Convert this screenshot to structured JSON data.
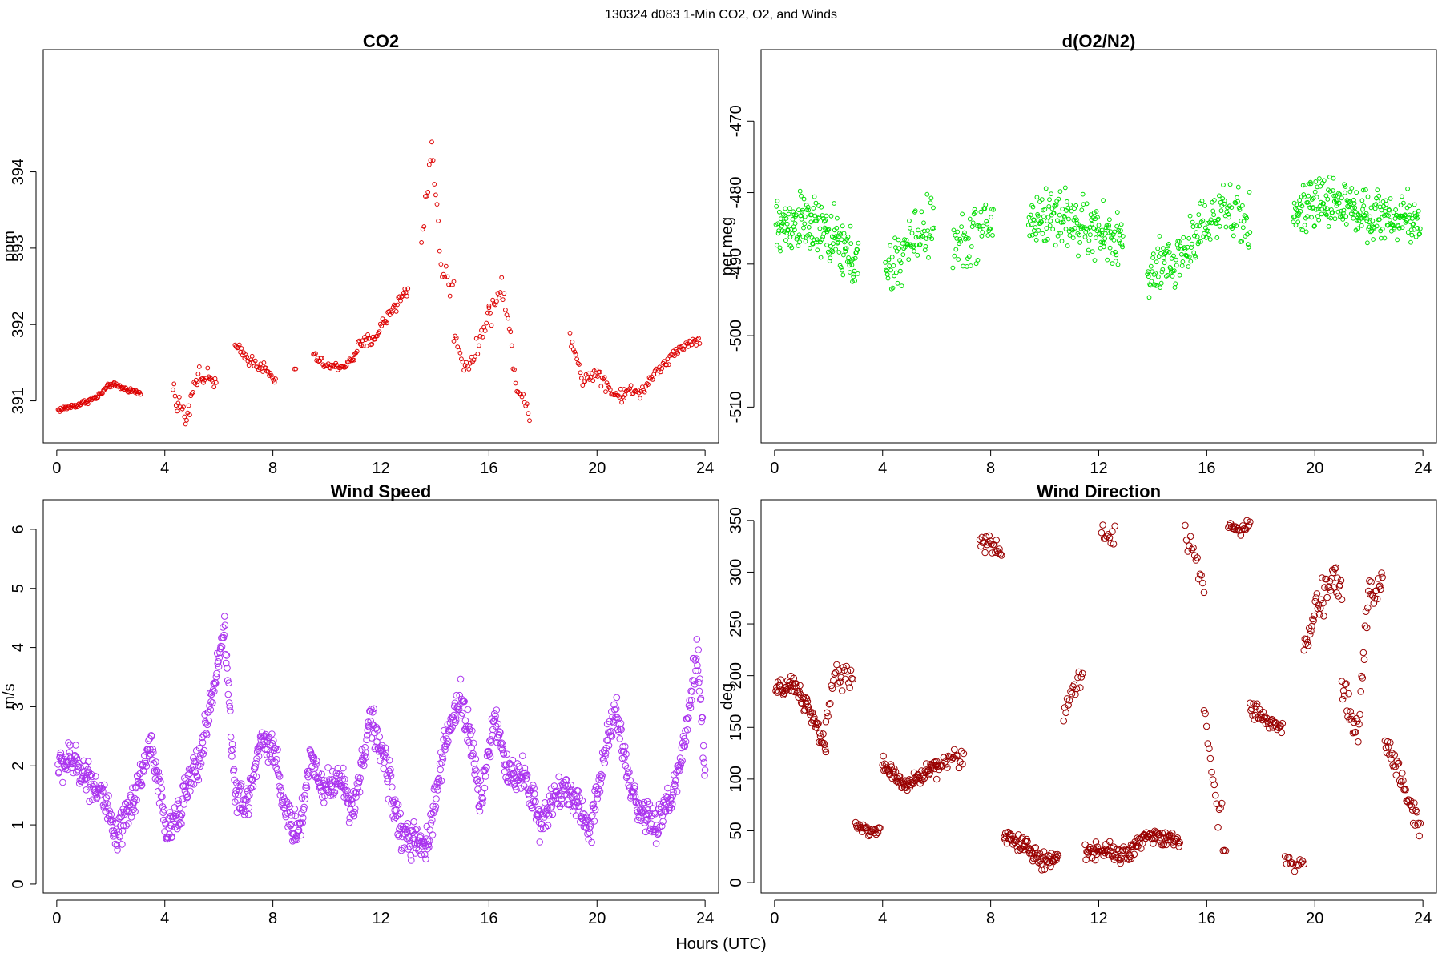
{
  "figure": {
    "title": "130324   d083   1-Min CO2, O2, and Winds",
    "xlabel": "Hours (UTC)"
  },
  "chart_data": [
    {
      "id": "co2",
      "type": "scatter",
      "title": "CO2",
      "xlabel": "",
      "ylabel": "ppm",
      "xlim": [
        -0.5,
        24.5
      ],
      "ylim": [
        390.45,
        395.6
      ],
      "xticks": [
        0,
        4,
        8,
        12,
        16,
        20,
        24
      ],
      "yticks": [
        391,
        392,
        393,
        394
      ],
      "color": "#dd0000",
      "marker_radius": 2.4,
      "segments": [
        {
          "x0": 0.05,
          "x1": 3.1,
          "knots": [
            [
              0.05,
              390.88
            ],
            [
              0.8,
              390.95
            ],
            [
              1.5,
              391.05
            ],
            [
              2.0,
              391.22
            ],
            [
              2.6,
              391.15
            ],
            [
              3.1,
              391.1
            ]
          ],
          "noise": 0.05,
          "density": 30
        },
        {
          "x0": 4.3,
          "x1": 5.9,
          "knots": [
            [
              4.3,
              391.15
            ],
            [
              4.8,
              390.75
            ],
            [
              5.1,
              391.3
            ],
            [
              5.5,
              391.3
            ],
            [
              5.9,
              391.25
            ]
          ],
          "noise": 0.18,
          "density": 26
        },
        {
          "x0": 6.6,
          "x1": 8.1,
          "knots": [
            [
              6.6,
              391.7
            ],
            [
              7.1,
              391.55
            ],
            [
              7.6,
              391.45
            ],
            [
              8.1,
              391.25
            ]
          ],
          "noise": 0.12,
          "density": 26
        },
        {
          "x0": 8.8,
          "x1": 8.85,
          "knots": [
            [
              8.8,
              391.42
            ],
            [
              8.85,
              391.42
            ]
          ],
          "noise": 0.01,
          "density": 10
        },
        {
          "x0": 9.5,
          "x1": 11.0,
          "knots": [
            [
              9.5,
              391.6
            ],
            [
              10.0,
              391.45
            ],
            [
              10.6,
              391.45
            ],
            [
              11.0,
              391.55
            ]
          ],
          "noise": 0.08,
          "density": 26
        },
        {
          "x0": 11.0,
          "x1": 13.0,
          "knots": [
            [
              11.0,
              391.65
            ],
            [
              11.8,
              391.85
            ],
            [
              12.4,
              392.2
            ],
            [
              13.0,
              392.45
            ]
          ],
          "noise": 0.15,
          "density": 26
        },
        {
          "x0": 13.5,
          "x1": 14.7,
          "knots": [
            [
              13.5,
              393.1
            ],
            [
              13.9,
              394.4
            ],
            [
              14.2,
              392.8
            ],
            [
              14.7,
              392.4
            ]
          ],
          "noise": 0.3,
          "density": 22
        },
        {
          "x0": 14.7,
          "x1": 16.0,
          "knots": [
            [
              14.7,
              391.9
            ],
            [
              15.1,
              391.45
            ],
            [
              15.5,
              391.6
            ],
            [
              16.0,
              392.2
            ]
          ],
          "noise": 0.18,
          "density": 22
        },
        {
          "x0": 16.0,
          "x1": 17.5,
          "knots": [
            [
              16.0,
              392.1
            ],
            [
              16.5,
              392.5
            ],
            [
              17.0,
              391.3
            ],
            [
              17.5,
              390.75
            ]
          ],
          "noise": 0.25,
          "density": 22
        },
        {
          "x0": 19.0,
          "x1": 21.0,
          "knots": [
            [
              19.0,
              391.9
            ],
            [
              19.5,
              391.25
            ],
            [
              20.0,
              391.4
            ],
            [
              20.6,
              391.1
            ],
            [
              21.0,
              391.05
            ]
          ],
          "noise": 0.15,
          "density": 24
        },
        {
          "x0": 21.0,
          "x1": 23.8,
          "knots": [
            [
              21.0,
              391.15
            ],
            [
              21.6,
              391.1
            ],
            [
              22.2,
              391.4
            ],
            [
              22.8,
              391.6
            ],
            [
              23.3,
              391.75
            ],
            [
              23.8,
              391.8
            ]
          ],
          "noise": 0.1,
          "density": 24
        }
      ]
    },
    {
      "id": "o2",
      "type": "scatter",
      "title": "d(O2/N2)",
      "xlabel": "",
      "ylabel": "per meg",
      "xlim": [
        -0.5,
        24.5
      ],
      "ylim": [
        -515,
        -460
      ],
      "xticks": [
        0,
        4,
        8,
        12,
        16,
        20,
        24
      ],
      "yticks": [
        -510,
        -500,
        -490,
        -480,
        -470
      ],
      "color": "#00dd00",
      "marker_radius": 2.4,
      "segments": [
        {
          "x0": 0.05,
          "x1": 3.1,
          "knots": [
            [
              0.05,
              -485
            ],
            [
              1.0,
              -484
            ],
            [
              2.0,
              -486
            ],
            [
              3.1,
              -490
            ]
          ],
          "noise": 6,
          "density": 55
        },
        {
          "x0": 4.1,
          "x1": 5.9,
          "knots": [
            [
              4.1,
              -492
            ],
            [
              5.0,
              -487
            ],
            [
              5.9,
              -484
            ]
          ],
          "noise": 6,
          "density": 40
        },
        {
          "x0": 6.6,
          "x1": 8.1,
          "knots": [
            [
              6.6,
              -488
            ],
            [
              7.3,
              -486
            ],
            [
              8.1,
              -484
            ]
          ],
          "noise": 6,
          "density": 35
        },
        {
          "x0": 9.4,
          "x1": 12.9,
          "knots": [
            [
              9.4,
              -484
            ],
            [
              10.5,
              -483
            ],
            [
              11.5,
              -485
            ],
            [
              12.9,
              -487
            ]
          ],
          "noise": 6,
          "density": 48
        },
        {
          "x0": 13.8,
          "x1": 15.7,
          "knots": [
            [
              13.8,
              -492
            ],
            [
              14.7,
              -490
            ],
            [
              15.7,
              -486
            ]
          ],
          "noise": 6,
          "density": 45
        },
        {
          "x0": 15.7,
          "x1": 17.6,
          "knots": [
            [
              15.7,
              -484
            ],
            [
              16.6,
              -483
            ],
            [
              17.6,
              -484
            ]
          ],
          "noise": 6,
          "density": 40
        },
        {
          "x0": 19.2,
          "x1": 23.9,
          "knots": [
            [
              19.2,
              -483
            ],
            [
              20.5,
              -481
            ],
            [
              22.0,
              -483
            ],
            [
              23.9,
              -484
            ]
          ],
          "noise": 5,
          "density": 52
        }
      ]
    },
    {
      "id": "wind-speed",
      "type": "scatter",
      "title": "Wind Speed",
      "xlabel": "",
      "ylabel": "m/s",
      "xlim": [
        -0.5,
        24.5
      ],
      "ylim": [
        -0.15,
        6.5
      ],
      "xticks": [
        0,
        4,
        8,
        12,
        16,
        20,
        24
      ],
      "yticks": [
        0,
        1,
        2,
        3,
        4,
        5,
        6
      ],
      "color": "#aa33ee",
      "marker_radius": 3.8,
      "segments": [
        {
          "x0": 0.05,
          "x1": 24.0,
          "knots": [
            [
              0.05,
              2.0
            ],
            [
              0.5,
              2.1
            ],
            [
              1.0,
              1.9
            ],
            [
              1.7,
              1.5
            ],
            [
              2.2,
              0.7
            ],
            [
              2.8,
              1.4
            ],
            [
              3.5,
              2.4
            ],
            [
              4.1,
              0.8
            ],
            [
              4.8,
              1.6
            ],
            [
              5.3,
              2.1
            ],
            [
              5.8,
              3.3
            ],
            [
              6.2,
              4.4
            ],
            [
              6.6,
              1.5
            ],
            [
              7.0,
              1.3
            ],
            [
              7.6,
              2.5
            ],
            [
              8.1,
              2.2
            ],
            [
              8.5,
              1.1
            ],
            [
              9.0,
              0.9
            ],
            [
              9.4,
              2.2
            ],
            [
              9.9,
              1.6
            ],
            [
              10.4,
              1.8
            ],
            [
              11.0,
              1.3
            ],
            [
              11.6,
              2.8
            ],
            [
              12.2,
              2.0
            ],
            [
              12.7,
              0.9
            ],
            [
              13.2,
              0.7
            ],
            [
              13.7,
              0.6
            ],
            [
              14.3,
              2.2
            ],
            [
              14.9,
              3.2
            ],
            [
              15.3,
              2.5
            ],
            [
              15.7,
              1.4
            ],
            [
              16.2,
              2.9
            ],
            [
              16.7,
              1.8
            ],
            [
              17.3,
              1.9
            ],
            [
              17.9,
              1.0
            ],
            [
              18.5,
              1.6
            ],
            [
              19.1,
              1.5
            ],
            [
              19.7,
              0.9
            ],
            [
              20.3,
              2.2
            ],
            [
              20.7,
              3.0
            ],
            [
              21.2,
              1.6
            ],
            [
              21.7,
              1.1
            ],
            [
              22.2,
              1.0
            ],
            [
              22.8,
              1.5
            ],
            [
              23.3,
              2.5
            ],
            [
              23.7,
              4.0
            ],
            [
              24.0,
              1.8
            ]
          ],
          "noise": 0.45,
          "density": 52
        }
      ]
    },
    {
      "id": "wind-direction",
      "type": "scatter",
      "title": "Wind Direction",
      "xlabel": "",
      "ylabel": "deg",
      "xlim": [
        -0.5,
        24.5
      ],
      "ylim": [
        -10,
        370
      ],
      "xticks": [
        0,
        4,
        8,
        12,
        16,
        20,
        24
      ],
      "yticks": [
        0,
        50,
        100,
        150,
        200,
        250,
        300,
        350
      ],
      "color": "#990000",
      "marker_radius": 3.8,
      "segments": [
        {
          "x0": 0.05,
          "x1": 1.9,
          "knots": [
            [
              0.05,
              185
            ],
            [
              0.8,
              190
            ],
            [
              1.2,
              170
            ],
            [
              1.9,
              130
            ]
          ],
          "noise": 14,
          "density": 40
        },
        {
          "x0": 1.9,
          "x1": 2.9,
          "knots": [
            [
              1.9,
              150
            ],
            [
              2.3,
              205
            ],
            [
              2.9,
              200
            ]
          ],
          "noise": 22,
          "density": 26
        },
        {
          "x0": 3.0,
          "x1": 3.9,
          "knots": [
            [
              3.0,
              55
            ],
            [
              3.5,
              50
            ],
            [
              3.9,
              50
            ]
          ],
          "noise": 6,
          "density": 30
        },
        {
          "x0": 4.0,
          "x1": 6.0,
          "knots": [
            [
              4.0,
              115
            ],
            [
              4.7,
              95
            ],
            [
              5.3,
              100
            ],
            [
              6.0,
              115
            ]
          ],
          "noise": 12,
          "density": 40
        },
        {
          "x0": 6.0,
          "x1": 7.0,
          "knots": [
            [
              6.0,
              110
            ],
            [
              6.5,
              120
            ],
            [
              7.0,
              125
            ]
          ],
          "noise": 15,
          "density": 24
        },
        {
          "x0": 7.6,
          "x1": 8.4,
          "knots": [
            [
              7.6,
              330
            ],
            [
              8.0,
              325
            ],
            [
              8.4,
              320
            ]
          ],
          "noise": 14,
          "density": 28
        },
        {
          "x0": 8.5,
          "x1": 10.5,
          "knots": [
            [
              8.5,
              45
            ],
            [
              9.3,
              35
            ],
            [
              9.9,
              20
            ],
            [
              10.5,
              25
            ]
          ],
          "noise": 12,
          "density": 40
        },
        {
          "x0": 10.7,
          "x1": 11.4,
          "knots": [
            [
              10.7,
              160
            ],
            [
              11.0,
              185
            ],
            [
              11.4,
              200
            ]
          ],
          "noise": 14,
          "density": 24
        },
        {
          "x0": 11.5,
          "x1": 13.2,
          "knots": [
            [
              11.5,
              30
            ],
            [
              12.3,
              32
            ],
            [
              13.2,
              25
            ]
          ],
          "noise": 12,
          "density": 36
        },
        {
          "x0": 13.2,
          "x1": 15.0,
          "knots": [
            [
              13.2,
              35
            ],
            [
              14.0,
              45
            ],
            [
              15.0,
              40
            ]
          ],
          "noise": 10,
          "density": 36
        },
        {
          "x0": 12.1,
          "x1": 12.6,
          "knots": [
            [
              12.1,
              340
            ],
            [
              12.6,
              330
            ]
          ],
          "noise": 18,
          "density": 22
        },
        {
          "x0": 15.2,
          "x1": 15.9,
          "knots": [
            [
              15.2,
              340
            ],
            [
              15.5,
              320
            ],
            [
              15.9,
              280
            ]
          ],
          "noise": 20,
          "density": 22
        },
        {
          "x0": 15.9,
          "x1": 16.7,
          "knots": [
            [
              15.9,
              170
            ],
            [
              16.3,
              90
            ],
            [
              16.7,
              40
            ]
          ],
          "noise": 25,
          "density": 22
        },
        {
          "x0": 16.8,
          "x1": 17.6,
          "knots": [
            [
              16.8,
              345
            ],
            [
              17.2,
              340
            ],
            [
              17.6,
              345
            ]
          ],
          "noise": 10,
          "density": 28
        },
        {
          "x0": 17.6,
          "x1": 18.8,
          "knots": [
            [
              17.6,
              170
            ],
            [
              18.2,
              155
            ],
            [
              18.8,
              150
            ]
          ],
          "noise": 12,
          "density": 32
        },
        {
          "x0": 18.9,
          "x1": 19.6,
          "knots": [
            [
              18.9,
              20
            ],
            [
              19.3,
              15
            ],
            [
              19.6,
              20
            ]
          ],
          "noise": 10,
          "density": 22
        },
        {
          "x0": 19.6,
          "x1": 21.0,
          "knots": [
            [
              19.6,
              230
            ],
            [
              20.2,
              270
            ],
            [
              20.8,
              300
            ],
            [
              21.0,
              280
            ]
          ],
          "noise": 25,
          "density": 32
        },
        {
          "x0": 21.0,
          "x1": 22.5,
          "knots": [
            [
              21.0,
              190
            ],
            [
              21.6,
              140
            ],
            [
              22.0,
              280
            ],
            [
              22.5,
              290
            ]
          ],
          "noise": 30,
          "density": 32
        },
        {
          "x0": 22.6,
          "x1": 23.9,
          "knots": [
            [
              22.6,
              130
            ],
            [
              23.1,
              110
            ],
            [
              23.5,
              80
            ],
            [
              23.9,
              50
            ]
          ],
          "noise": 20,
          "density": 32
        }
      ]
    }
  ]
}
